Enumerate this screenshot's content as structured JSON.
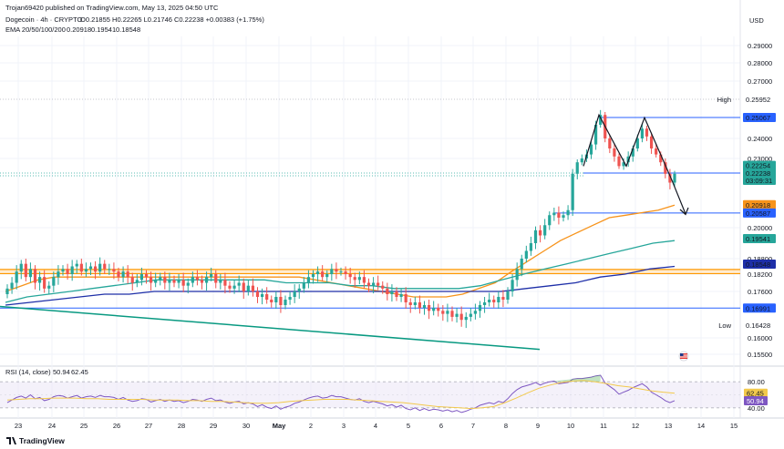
{
  "publisher_line": "Trojan69420 published on TradingView.com, May 13, 2025 04:50 UTC",
  "header": {
    "symbol": "Dogecoin · 4h · CRYPTO",
    "ohlc": "O0.21855 H0.22265 L0.21746 C0.22238 +0.00383 (+1.75%)",
    "ema_label": "EMA 20/50/100/200",
    "ema_values": [
      "0.20918",
      "0.19541",
      "0.18548"
    ]
  },
  "currency": "USD",
  "branding": "TradingView",
  "colors": {
    "up": "#26a69a",
    "down": "#ef5350",
    "ema20": "#f7931a",
    "ema50": "#26a69a",
    "ema100": "#1e2fa8",
    "blue_line": "#2962ff",
    "orange_zone": "#ff9800",
    "trendline": "#089981",
    "rsi": "#7e57c2",
    "rsi_ma": "#f2c94c"
  },
  "chart_data": {
    "type": "candlestick",
    "symbol": "Dogecoin",
    "interval": "4h",
    "x_tick_labels": [
      "23",
      "24",
      "25",
      "26",
      "27",
      "28",
      "29",
      "30",
      "May",
      "2",
      "3",
      "4",
      "5",
      "6",
      "7",
      "8",
      "9",
      "10",
      "11",
      "12",
      "13",
      "14",
      "15"
    ],
    "price_axis_ticks": [
      "0.29000",
      "0.28000",
      "0.27000",
      "0.24000",
      "0.23000",
      "0.20000",
      "0.18800",
      "0.18200",
      "0.17600",
      "0.16000",
      "0.15500"
    ],
    "ylim": [
      0.15,
      0.3
    ],
    "price_labels": [
      {
        "label": "High",
        "value": "0.25952"
      },
      {
        "label": "",
        "value": "0.25067"
      },
      {
        "label": "",
        "value": "0.22254"
      },
      {
        "label": "",
        "value": "0.22238"
      },
      {
        "label": "",
        "value": "03:09:31"
      },
      {
        "label": "",
        "value": "0.20918"
      },
      {
        "label": "",
        "value": "0.20587"
      },
      {
        "label": "",
        "value": "0.19541"
      },
      {
        "label": "",
        "value": "0.18548"
      },
      {
        "label": "",
        "value": "0.16991"
      },
      {
        "label": "Low",
        "value": "0.16428"
      }
    ],
    "horizontal_levels": [
      0.25067,
      0.22238,
      0.20587,
      0.16991
    ],
    "support_zone": [
      0.1822,
      0.1838
    ],
    "closes": [
      0.177,
      0.179,
      0.183,
      0.186,
      0.181,
      0.184,
      0.179,
      0.181,
      0.177,
      0.178,
      0.181,
      0.183,
      0.184,
      0.182,
      0.185,
      0.186,
      0.183,
      0.184,
      0.185,
      0.183,
      0.186,
      0.184,
      0.184,
      0.183,
      0.181,
      0.183,
      0.181,
      0.179,
      0.18,
      0.182,
      0.181,
      0.179,
      0.18,
      0.181,
      0.179,
      0.18,
      0.179,
      0.18,
      0.178,
      0.179,
      0.181,
      0.18,
      0.179,
      0.181,
      0.182,
      0.179,
      0.18,
      0.178,
      0.177,
      0.178,
      0.179,
      0.176,
      0.178,
      0.176,
      0.174,
      0.175,
      0.173,
      0.172,
      0.174,
      0.171,
      0.173,
      0.174,
      0.176,
      0.177,
      0.179,
      0.181,
      0.182,
      0.183,
      0.181,
      0.182,
      0.184,
      0.183,
      0.183,
      0.182,
      0.181,
      0.18,
      0.181,
      0.179,
      0.178,
      0.179,
      0.178,
      0.177,
      0.175,
      0.176,
      0.174,
      0.175,
      0.172,
      0.171,
      0.172,
      0.17,
      0.171,
      0.169,
      0.17,
      0.169,
      0.168,
      0.169,
      0.167,
      0.168,
      0.166,
      0.167,
      0.168,
      0.169,
      0.171,
      0.172,
      0.173,
      0.172,
      0.174,
      0.173,
      0.176,
      0.18,
      0.184,
      0.188,
      0.191,
      0.194,
      0.199,
      0.197,
      0.201,
      0.205,
      0.206,
      0.204,
      0.205,
      0.207,
      0.222,
      0.228,
      0.23,
      0.232,
      0.237,
      0.247,
      0.252,
      0.24,
      0.235,
      0.231,
      0.226,
      0.228,
      0.231,
      0.235,
      0.24,
      0.245,
      0.241,
      0.235,
      0.232,
      0.228,
      0.222,
      0.218,
      0.222
    ],
    "ema20": [
      0.176,
      0.178,
      0.18,
      0.181,
      0.181,
      0.181,
      0.181,
      0.181,
      0.181,
      0.181,
      0.181,
      0.181,
      0.181,
      0.181,
      0.181,
      0.181,
      0.181,
      0.181,
      0.181,
      0.18,
      0.179,
      0.178,
      0.177,
      0.176,
      0.175,
      0.174,
      0.174,
      0.174,
      0.175,
      0.177,
      0.179,
      0.183,
      0.187,
      0.191,
      0.195,
      0.198,
      0.201,
      0.204,
      0.205,
      0.206,
      0.207,
      0.209
    ],
    "ema50": [
      0.172,
      0.174,
      0.175,
      0.176,
      0.177,
      0.178,
      0.179,
      0.18,
      0.18,
      0.18,
      0.18,
      0.18,
      0.18,
      0.179,
      0.179,
      0.179,
      0.178,
      0.178,
      0.177,
      0.177,
      0.177,
      0.177,
      0.178,
      0.18,
      0.182,
      0.184,
      0.186,
      0.188,
      0.19,
      0.192,
      0.194,
      0.195
    ],
    "ema100": [
      0.171,
      0.172,
      0.173,
      0.174,
      0.175,
      0.175,
      0.176,
      0.176,
      0.176,
      0.176,
      0.176,
      0.176,
      0.176,
      0.176,
      0.176,
      0.176,
      0.176,
      0.176,
      0.176,
      0.176,
      0.176,
      0.177,
      0.178,
      0.179,
      0.181,
      0.182,
      0.184,
      0.185
    ],
    "descending_trendline": [
      0.1705,
      0.1565
    ],
    "pattern_points": [
      0.226,
      0.252,
      0.226,
      0.2506,
      0.219,
      0.2055
    ],
    "rsi": {
      "label": "RSI (14, close)",
      "value": "50.94",
      "ma_value": "62.45",
      "ticks": [
        "80.00",
        "40.00"
      ],
      "ylim": [
        30,
        90
      ],
      "values": [
        48,
        52,
        56,
        58,
        55,
        60,
        54,
        56,
        51,
        53,
        57,
        59,
        58,
        55,
        57,
        59,
        55,
        57,
        58,
        56,
        59,
        57,
        57,
        56,
        53,
        56,
        52,
        50,
        51,
        54,
        53,
        49,
        51,
        53,
        50,
        52,
        50,
        51,
        48,
        50,
        53,
        52,
        50,
        53,
        55,
        51,
        52,
        49,
        47,
        49,
        50,
        46,
        48,
        46,
        42,
        45,
        41,
        39,
        43,
        38,
        41,
        43,
        47,
        49,
        52,
        55,
        57,
        58,
        55,
        56,
        59,
        57,
        57,
        55,
        53,
        52,
        54,
        50,
        48,
        50,
        48,
        46,
        43,
        45,
        41,
        44,
        39,
        37,
        40,
        36,
        39,
        36,
        38,
        37,
        35,
        37,
        34,
        36,
        33,
        35,
        38,
        40,
        44,
        46,
        48,
        46,
        50,
        48,
        54,
        62,
        68,
        72,
        74,
        76,
        79,
        75,
        78,
        80,
        81,
        77,
        78,
        79,
        84,
        85,
        85,
        86,
        87,
        89,
        90,
        78,
        73,
        68,
        61,
        64,
        67,
        71,
        74,
        77,
        72,
        64,
        60,
        56,
        51,
        48,
        51
      ],
      "ma_values": [
        52,
        53,
        54,
        54,
        55,
        55,
        55,
        54,
        54,
        53,
        53,
        53,
        53,
        52,
        52,
        52,
        51,
        51,
        50,
        50,
        49,
        48,
        47,
        47,
        48,
        50,
        51,
        52,
        53,
        53,
        53,
        52,
        51,
        50,
        49,
        48,
        46,
        44,
        42,
        41,
        40,
        39,
        40,
        42,
        48,
        55,
        63,
        70,
        75,
        79,
        81,
        82,
        80,
        77,
        74,
        72,
        69,
        66,
        64,
        62.45
      ]
    }
  }
}
